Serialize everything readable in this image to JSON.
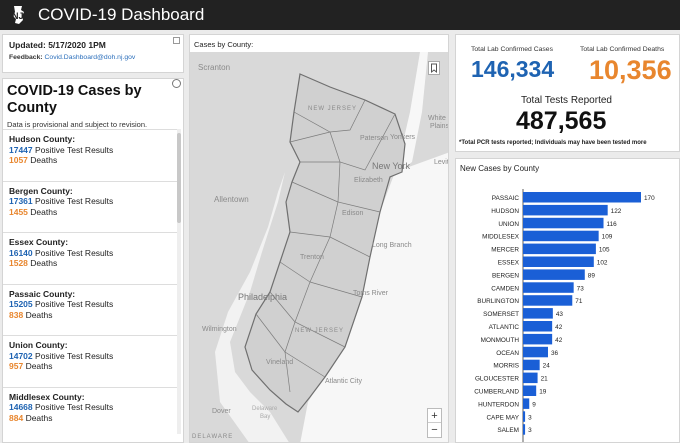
{
  "header": {
    "title": "COVID-19 Dashboard"
  },
  "update": {
    "updated": "Updated: 5/17/2020 1PM",
    "feedback_label": "Feedback:",
    "feedback_email": "Covid.Dashboard@doh.nj.gov"
  },
  "cases_list": {
    "title": "COVID-19 Cases by County",
    "subtitle": "Data is provisional and subject to revision.",
    "positive_label": "Positive Test Results",
    "deaths_label": "Deaths",
    "counties": [
      {
        "name": "Hudson County:",
        "positives": "17447",
        "deaths": "1057"
      },
      {
        "name": "Bergen County:",
        "positives": "17361",
        "deaths": "1455"
      },
      {
        "name": "Essex County:",
        "positives": "16140",
        "deaths": "1528"
      },
      {
        "name": "Passaic County:",
        "positives": "15205",
        "deaths": "838"
      },
      {
        "name": "Union County:",
        "positives": "14702",
        "deaths": "957"
      },
      {
        "name": "Middlesex County:",
        "positives": "14668",
        "deaths": "884"
      }
    ]
  },
  "map": {
    "title": "Cases by County:",
    "labels": [
      "Scranton",
      "NEW JERSEY",
      "White Plains",
      "Yonkers",
      "Paterson",
      "New York",
      "Levit",
      "Allentown",
      "Elizabeth",
      "Edison",
      "Trenton",
      "Long Branch",
      "Philadelphia",
      "Toms River",
      "Wilmington",
      "NEW JERSEY",
      "Vineland",
      "Atlantic City",
      "Dover",
      "Delaware Bay",
      "DELAWARE"
    ],
    "zoom_in": "+",
    "zoom_out": "−",
    "colors": {
      "land": "#d7d7d7",
      "water": "#fafafa",
      "text": "#888888"
    }
  },
  "stats": {
    "confirmed_label": "Total Lab Confirmed Cases",
    "confirmed_value": "146,334",
    "deaths_label": "Total Lab Confirmed Deaths",
    "deaths_value": "10,356",
    "tests_label": "Total Tests Reported",
    "tests_value": "487,565",
    "note": "*Total PCR tests reported; Individuals may have been tested more",
    "colors": {
      "confirmed": "#1e63b2",
      "deaths": "#e8862e"
    }
  },
  "chart_title": "New Cases by County",
  "chart_data": {
    "type": "bar",
    "orientation": "horizontal",
    "title": "New Cases by County",
    "categories": [
      "PASSAIC",
      "HUDSON",
      "UNION",
      "MIDDLESEX",
      "MERCER",
      "ESSEX",
      "BERGEN",
      "CAMDEN",
      "BURLINGTON",
      "SOMERSET",
      "ATLANTIC",
      "MONMOUTH",
      "OCEAN",
      "MORRIS",
      "GLOUCESTER",
      "CUMBERLAND",
      "HUNTERDON",
      "CAPE MAY",
      "SALEM"
    ],
    "values": [
      170,
      122,
      116,
      109,
      105,
      102,
      89,
      73,
      71,
      43,
      42,
      42,
      36,
      24,
      21,
      19,
      9,
      3,
      3
    ],
    "color": "#1a5fd6",
    "xlim": [
      0,
      170
    ]
  }
}
